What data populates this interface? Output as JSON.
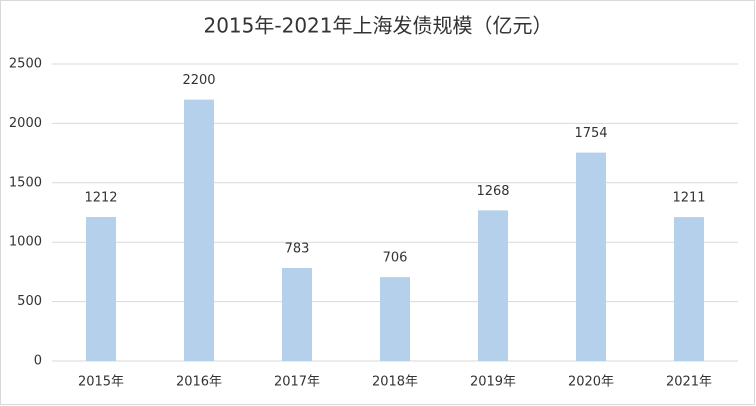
{
  "chart_data": {
    "type": "bar",
    "title": "2015年-2021年上海发债规模（亿元）",
    "categories": [
      "2015年",
      "2016年",
      "2017年",
      "2018年",
      "2019年",
      "2020年",
      "2021年"
    ],
    "values": [
      1212,
      2200,
      783,
      706,
      1268,
      1754,
      1211
    ],
    "color": "#b4d0ea",
    "ylim": [
      0,
      2500
    ],
    "yticks": [
      0,
      500,
      1000,
      1500,
      2000,
      2500
    ],
    "grid": true
  }
}
